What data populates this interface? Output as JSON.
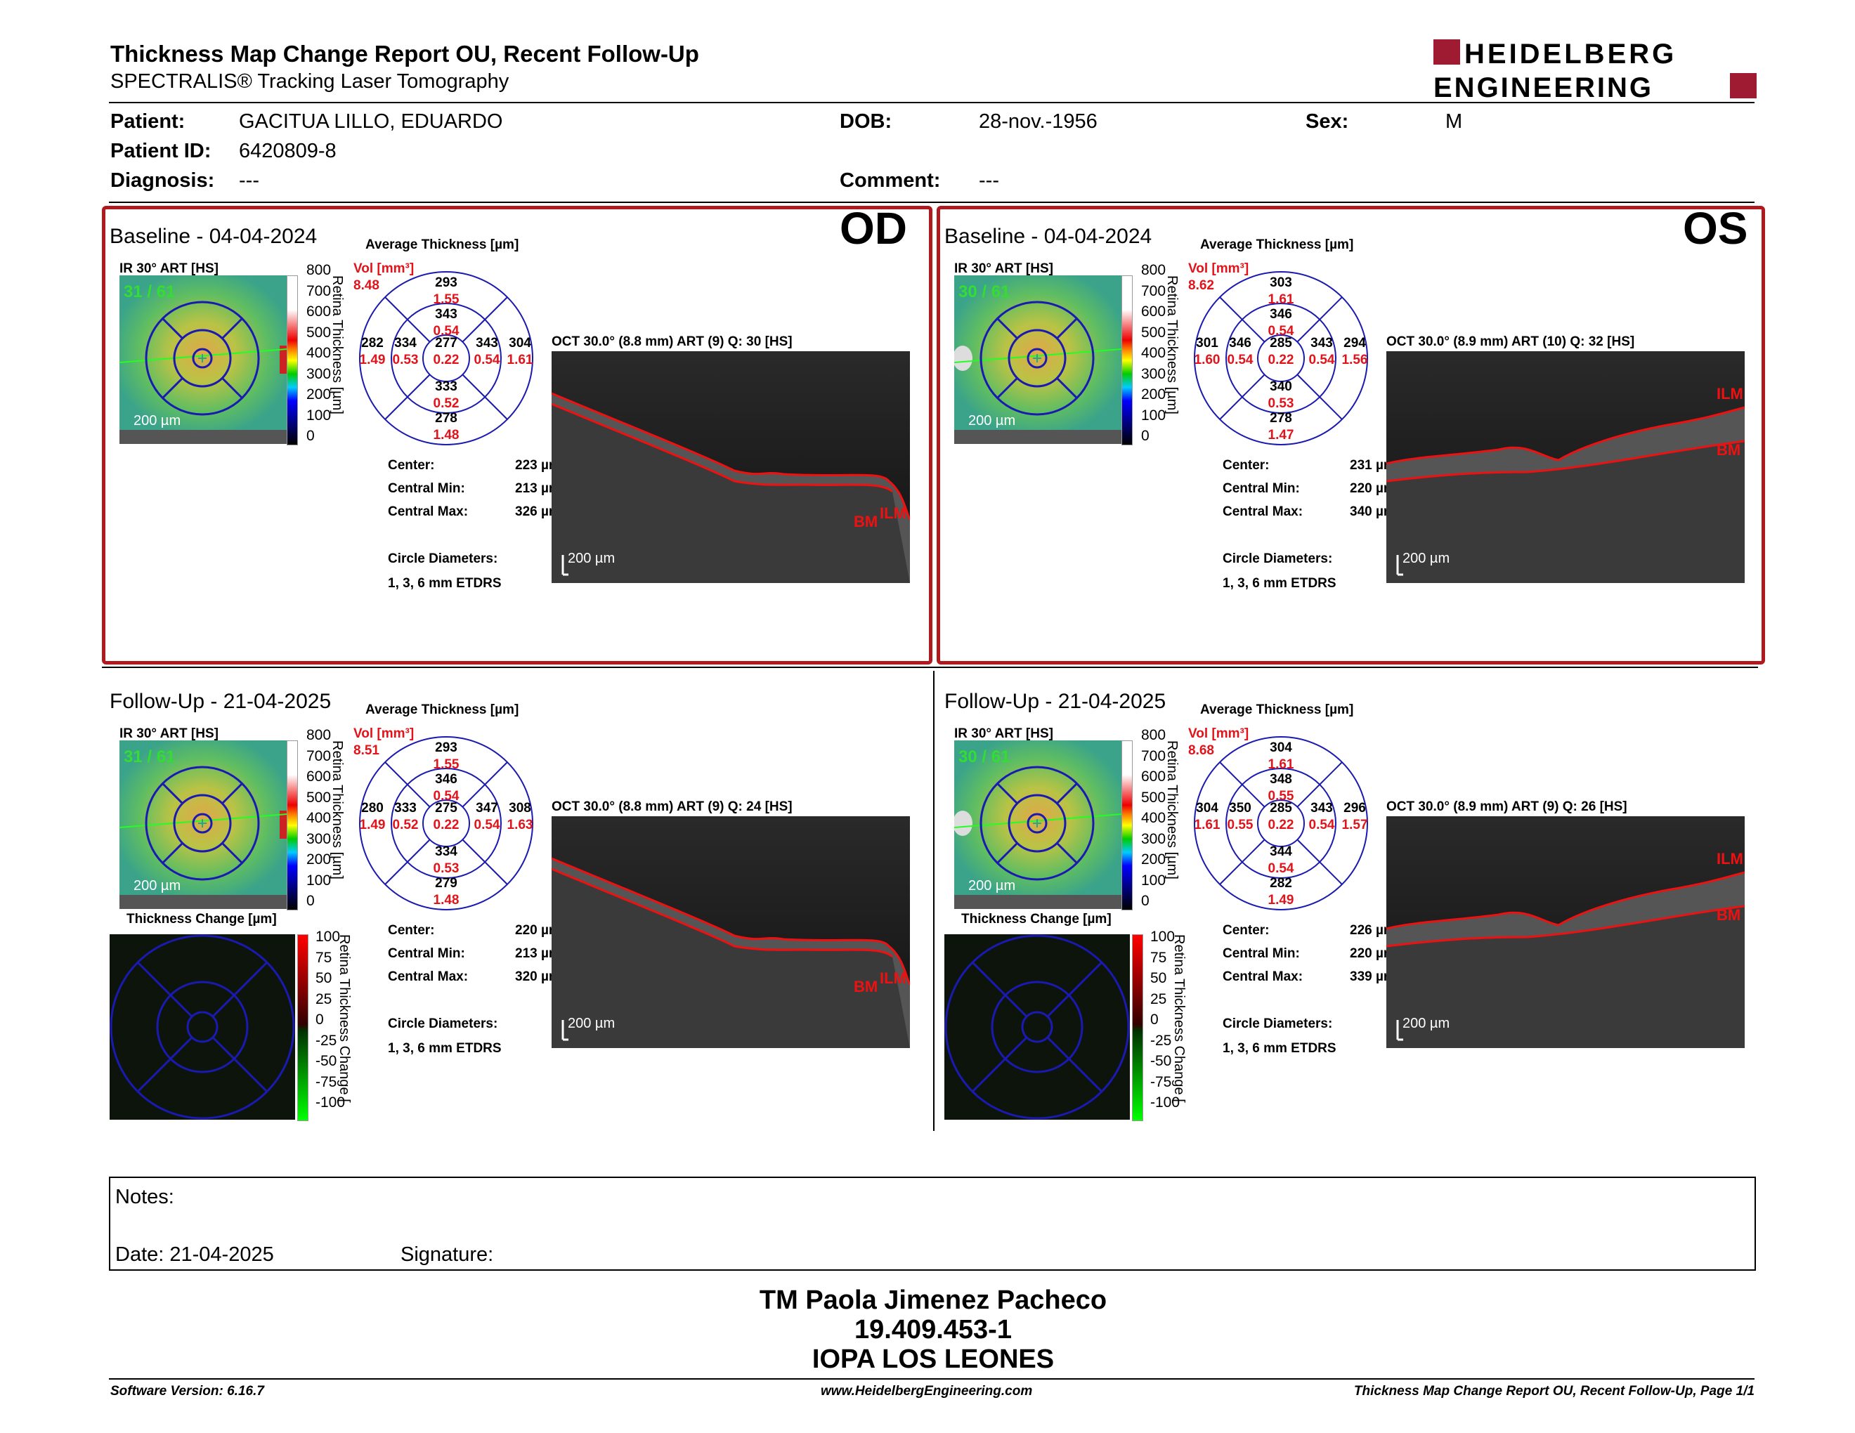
{
  "header": {
    "title": "Thickness Map Change Report OU, Recent Follow-Up",
    "subtitle": "SPECTRALIS® Tracking Laser Tomography",
    "logo_line1": "HEIDELBERG",
    "logo_line2": "ENGINEERING"
  },
  "patient": {
    "patient_label": "Patient:",
    "patient_value": "GACITUA LILLO, EDUARDO",
    "id_label": "Patient ID:",
    "id_value": "6420809-8",
    "diag_label": "Diagnosis:",
    "diag_value": "---",
    "dob_label": "DOB:",
    "dob_value": "28-nov.-1956",
    "comment_label": "Comment:",
    "comment_value": "---",
    "sex_label": "Sex:",
    "sex_value": "M"
  },
  "common": {
    "ir_label": "IR 30° ART [HS]",
    "avg_label": "Average Thickness [µm]",
    "vol_label": "Vol [mm³]",
    "scale_200": "200 µm",
    "center_label": "Center:",
    "cmin_label": "Central Min:",
    "cmax_label": "Central Max:",
    "circle_label": "Circle Diameters:",
    "circle_value": "1, 3, 6 mm ETDRS",
    "retina_axis": "Retina Thickness [µm]",
    "change_label": "Thickness Change [µm]",
    "change_axis": "Retina Thickness Change [",
    "ilm": "ILM",
    "bm": "BM",
    "scale_top": [
      "800",
      "700",
      "600",
      "500",
      "400",
      "300",
      "200",
      "100",
      "0"
    ],
    "scale_change": [
      "100",
      "75",
      "50",
      "25",
      "0",
      "-25",
      "-50",
      "-75",
      "-100"
    ]
  },
  "panels": {
    "od_base": {
      "title": "Baseline - 04-04-2024",
      "eye": "OD",
      "frames": "31 / 61",
      "vol": "8.48",
      "top": "293",
      "top_v": "1.55",
      "itop": "343",
      "itop_v": "0.54",
      "left": "282",
      "left_v": "1.49",
      "ileft": "334",
      "ileft_v": "0.53",
      "center": "277",
      "center_v": "0.22",
      "iright": "343",
      "iright_v": "0.54",
      "right": "304",
      "right_v": "1.61",
      "ibot": "333",
      "ibot_v": "0.52",
      "bot": "278",
      "bot_v": "1.48",
      "oct": "OCT 30.0° (8.8 mm) ART (9) Q: 30 [HS]",
      "c": "223 µm",
      "cmin": "213 µm",
      "cmax": "326 µm"
    },
    "os_base": {
      "title": "Baseline - 04-04-2024",
      "eye": "OS",
      "frames": "30 / 61",
      "vol": "8.62",
      "top": "303",
      "top_v": "1.61",
      "itop": "346",
      "itop_v": "0.54",
      "left": "301",
      "left_v": "1.60",
      "ileft": "346",
      "ileft_v": "0.54",
      "center": "285",
      "center_v": "0.22",
      "iright": "343",
      "iright_v": "0.54",
      "right": "294",
      "right_v": "1.56",
      "ibot": "340",
      "ibot_v": "0.53",
      "bot": "278",
      "bot_v": "1.47",
      "oct": "OCT 30.0° (8.9 mm) ART (10) Q: 32 [HS]",
      "c": "231 µm",
      "cmin": "220 µm",
      "cmax": "340 µm"
    },
    "od_fu": {
      "title": "Follow-Up - 21-04-2025",
      "frames": "31 / 61",
      "vol": "8.51",
      "top": "293",
      "top_v": "1.55",
      "itop": "346",
      "itop_v": "0.54",
      "left": "280",
      "left_v": "1.49",
      "ileft": "333",
      "ileft_v": "0.52",
      "center": "275",
      "center_v": "0.22",
      "iright": "347",
      "iright_v": "0.54",
      "right": "308",
      "right_v": "1.63",
      "ibot": "334",
      "ibot_v": "0.53",
      "bot": "279",
      "bot_v": "1.48",
      "oct": "OCT 30.0° (8.8 mm) ART (9) Q: 24 [HS]",
      "c": "220 µm",
      "cmin": "213 µm",
      "cmax": "320 µm"
    },
    "os_fu": {
      "title": "Follow-Up - 21-04-2025",
      "frames": "30 / 61",
      "vol": "8.68",
      "top": "304",
      "top_v": "1.61",
      "itop": "348",
      "itop_v": "0.55",
      "left": "304",
      "left_v": "1.61",
      "ileft": "350",
      "ileft_v": "0.55",
      "center": "285",
      "center_v": "0.22",
      "iright": "343",
      "iright_v": "0.54",
      "right": "296",
      "right_v": "1.57",
      "ibot": "344",
      "ibot_v": "0.54",
      "bot": "282",
      "bot_v": "1.49",
      "oct": "OCT 30.0° (8.9 mm) ART (9) Q: 26 [HS]",
      "c": "226 µm",
      "cmin": "220 µm",
      "cmax": "339 µm"
    }
  },
  "notes": {
    "notes_label": "Notes:",
    "date_label": "Date: 21-04-2025",
    "signature_label": "Signature:"
  },
  "signature_block": {
    "line1": "TM Paola Jimenez Pacheco",
    "line2": "19.409.453-1",
    "line3": "IOPA LOS LEONES"
  },
  "footer": {
    "software": "Software Version: 6.16.7",
    "website": "www.HeidelbergEngineering.com",
    "page": "Thickness Map Change Report OU, Recent Follow-Up, Page 1/1"
  }
}
